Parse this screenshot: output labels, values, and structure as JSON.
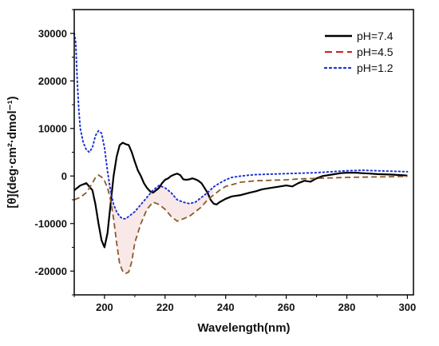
{
  "chart_data": {
    "type": "line",
    "xlabel": "Wavelength(nm)",
    "ylabel": "[θ](deg·cm²·dmol⁻¹)",
    "xlim": [
      190,
      302
    ],
    "ylim": [
      -25000,
      35000
    ],
    "xticks": [
      200,
      220,
      240,
      260,
      280,
      300
    ],
    "yticks": [
      -20000,
      -10000,
      0,
      10000,
      20000,
      30000
    ],
    "grid": false,
    "legend_position": "top-right",
    "series": [
      {
        "name": "pH=7.4",
        "color": "#000000",
        "style": "solid",
        "x": [
          190,
          192,
          194,
          196,
          197,
          198,
          199,
          200,
          201,
          202,
          203,
          204,
          205,
          206,
          207,
          208,
          209,
          210,
          211,
          212,
          213,
          214,
          215,
          216,
          217,
          218,
          219,
          220,
          221,
          222,
          223,
          224,
          225,
          226,
          227,
          228,
          229,
          230,
          231,
          232,
          233,
          234,
          235,
          236,
          237,
          238,
          240,
          242,
          245,
          248,
          250,
          252,
          255,
          258,
          260,
          262,
          264,
          266,
          268,
          270,
          272,
          275,
          278,
          280,
          283,
          285,
          288,
          290,
          295,
          300
        ],
        "y": [
          -3000,
          -2000,
          -1500,
          -3000,
          -6000,
          -10000,
          -13500,
          -15000,
          -12000,
          -6000,
          0,
          4000,
          6500,
          7000,
          6700,
          6500,
          5000,
          3000,
          1200,
          0,
          -1500,
          -2500,
          -3200,
          -3500,
          -3000,
          -2500,
          -1500,
          -800,
          -500,
          0,
          300,
          500,
          200,
          -700,
          -800,
          -700,
          -500,
          -700,
          -1000,
          -1500,
          -2500,
          -3500,
          -5000,
          -5800,
          -6000,
          -5500,
          -4800,
          -4300,
          -4000,
          -3500,
          -3200,
          -2800,
          -2500,
          -2200,
          -2000,
          -2200,
          -1500,
          -1000,
          -1200,
          -500,
          0,
          300,
          600,
          700,
          700,
          600,
          500,
          400,
          300,
          100
        ]
      },
      {
        "name": "pH=4.5",
        "color": "#d11f1f",
        "style": "dashed",
        "x": [
          190,
          192,
          194,
          196,
          197,
          198,
          199,
          200,
          201,
          202,
          203,
          204,
          205,
          206,
          207,
          208,
          209,
          210,
          212,
          214,
          216,
          218,
          220,
          222,
          224,
          226,
          228,
          230,
          232,
          234,
          236,
          238,
          240,
          245,
          250,
          255,
          260,
          265,
          270,
          275,
          280,
          285,
          290,
          295,
          300
        ],
        "y": [
          -5000,
          -4500,
          -3500,
          -1500,
          -300,
          200,
          -200,
          -1000,
          -2500,
          -5000,
          -9000,
          -14000,
          -18500,
          -20000,
          -20500,
          -20200,
          -18000,
          -14000,
          -10000,
          -7000,
          -5500,
          -6000,
          -7000,
          -8500,
          -9500,
          -9000,
          -8500,
          -7500,
          -6500,
          -5000,
          -4000,
          -3000,
          -2200,
          -1300,
          -1000,
          -900,
          -800,
          -600,
          -500,
          -400,
          -300,
          -250,
          -200,
          -150,
          -100
        ]
      },
      {
        "name": "pH=1.2",
        "color": "#1f33d1",
        "style": "dotted",
        "x": [
          190,
          190.5,
          191,
          191.5,
          192,
          193,
          194,
          195,
          196,
          197,
          198,
          199,
          200,
          201,
          202,
          203,
          204,
          205,
          206,
          207,
          208,
          210,
          212,
          214,
          216,
          218,
          220,
          222,
          224,
          226,
          228,
          230,
          232,
          234,
          236,
          238,
          240,
          242,
          245,
          248,
          250,
          255,
          260,
          265,
          270,
          275,
          280,
          285,
          290,
          295,
          300
        ],
        "y": [
          30000,
          28000,
          20000,
          14000,
          10000,
          7000,
          5500,
          5000,
          6000,
          8500,
          9500,
          9000,
          6000,
          1000,
          -3000,
          -6000,
          -7500,
          -8500,
          -9000,
          -9000,
          -8500,
          -7500,
          -6000,
          -4500,
          -3000,
          -2000,
          -2500,
          -3500,
          -5000,
          -5500,
          -5800,
          -5500,
          -4500,
          -3500,
          -2300,
          -1500,
          -800,
          -300,
          0,
          200,
          300,
          400,
          500,
          600,
          700,
          900,
          1100,
          1200,
          1100,
          1000,
          900
        ]
      }
    ]
  },
  "legend": {
    "items": [
      "pH=7.4",
      "pH=4.5",
      "pH=1.2"
    ]
  }
}
